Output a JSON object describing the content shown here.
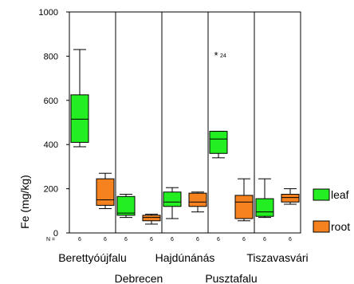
{
  "chart_data": {
    "type": "boxplot",
    "ylabel": "Fe (mg/kg)",
    "ylim": [
      0,
      1000
    ],
    "yticks": [
      0,
      200,
      400,
      600,
      800,
      1000
    ],
    "categories": [
      "Berettyóújfalu",
      "Debrecen",
      "Hajdúnánás",
      "Pusztafalu",
      "Tiszavasvári"
    ],
    "n_prefix": "N =",
    "series": [
      {
        "name": "leaf",
        "color": "#22ee22",
        "boxes": [
          {
            "min": 390,
            "q1": 410,
            "median": 515,
            "q3": 625,
            "max": 830,
            "n": "6"
          },
          {
            "min": 70,
            "q1": 80,
            "median": 90,
            "q3": 165,
            "max": 175,
            "n": "6"
          },
          {
            "min": 65,
            "q1": 120,
            "median": 140,
            "q3": 185,
            "max": 205,
            "n": "6"
          },
          {
            "min": 340,
            "q1": 360,
            "median": 425,
            "q3": 460,
            "max": 460,
            "n": "6",
            "outliers": [
              {
                "value": 805,
                "label": "24"
              }
            ]
          },
          {
            "min": 70,
            "q1": 75,
            "median": 95,
            "q3": 155,
            "max": 245,
            "n": "6"
          }
        ]
      },
      {
        "name": "root",
        "color": "#f5821f",
        "boxes": [
          {
            "min": 110,
            "q1": 125,
            "median": 150,
            "q3": 245,
            "max": 270,
            "n": "6"
          },
          {
            "min": 40,
            "q1": 55,
            "median": 70,
            "q3": 80,
            "max": 85,
            "n": "6"
          },
          {
            "min": 95,
            "q1": 120,
            "median": 140,
            "q3": 180,
            "max": 185,
            "n": "6"
          },
          {
            "min": 55,
            "q1": 65,
            "median": 140,
            "q3": 170,
            "max": 245,
            "n": "6"
          },
          {
            "min": 130,
            "q1": 140,
            "median": 160,
            "q3": 175,
            "max": 200,
            "n": "6"
          }
        ]
      }
    ]
  }
}
